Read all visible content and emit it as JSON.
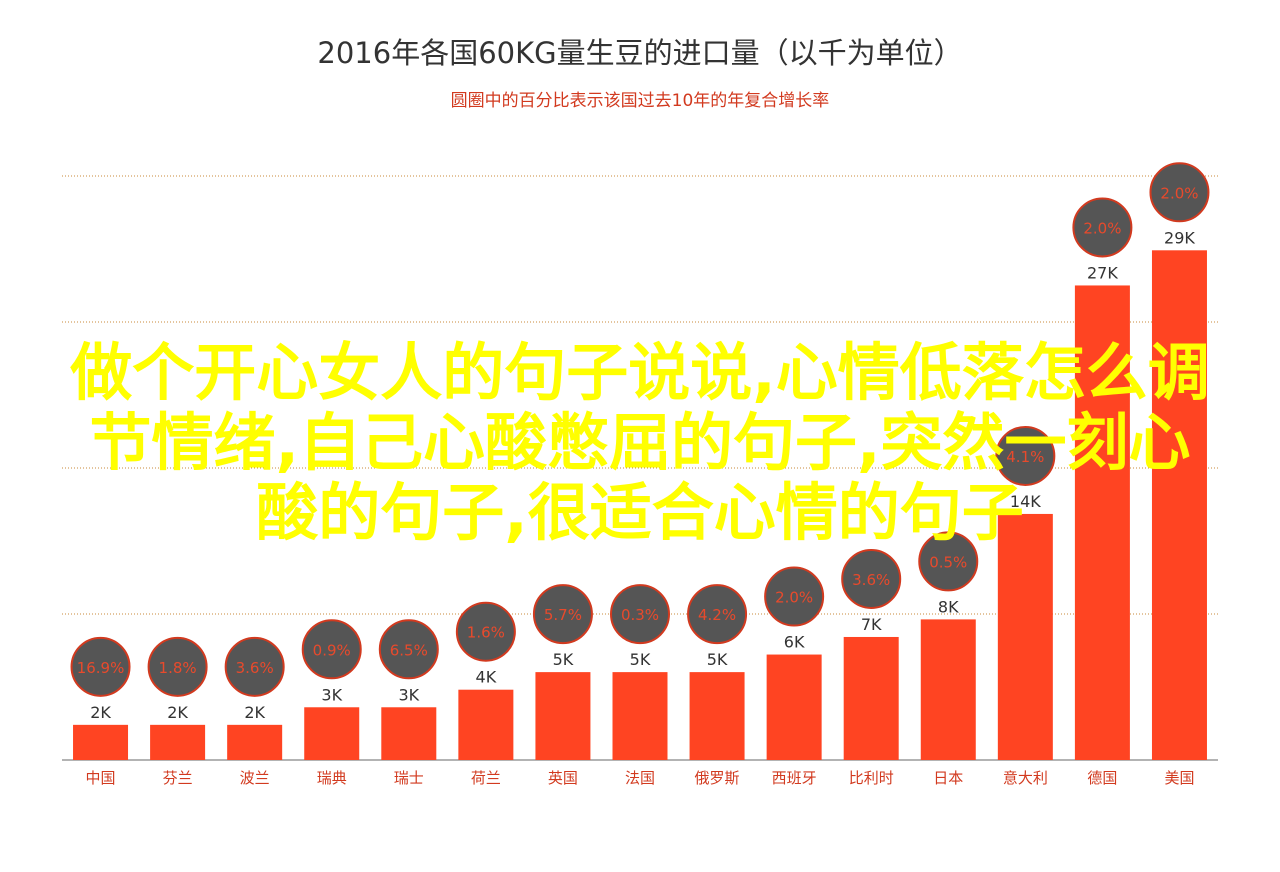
{
  "chart_data": {
    "type": "bar",
    "title": "2016年各国60KG量生豆的进口量（以千为单位）",
    "subtitle": "圆圈中的百分比表示该国过去10年的年复合增长率",
    "categories": [
      "中国",
      "芬兰",
      "波兰",
      "瑞典",
      "瑞士",
      "荷兰",
      "英国",
      "法国",
      "俄罗斯",
      "西班牙",
      "比利时",
      "日本",
      "意大利",
      "德国",
      "美国"
    ],
    "values": [
      2,
      2,
      2,
      3,
      3,
      4,
      5,
      5,
      5,
      6,
      7,
      8,
      14,
      27,
      29
    ],
    "value_labels": [
      "2K",
      "2K",
      "2K",
      "3K",
      "3K",
      "4K",
      "5K",
      "5K",
      "5K",
      "6K",
      "7K",
      "8K",
      "14K",
      "27K",
      "29K"
    ],
    "growth_rates": [
      "16.9%",
      "1.8%",
      "3.6%",
      "0.9%",
      "6.5%",
      "1.6%",
      "5.7%",
      "0.3%",
      "4.2%",
      "2.0%",
      "3.6%",
      "0.5%",
      "4.1%",
      "2.0%",
      "2.0%"
    ],
    "ylim": [
      0,
      33
    ],
    "grid": true,
    "colors": {
      "bar": "#ff4422",
      "circle": "#555555",
      "circle_border": "#d23a1f",
      "circle_text": "#e84a2c",
      "grid": "#c9893a",
      "axis_label": "#d23a1f"
    }
  },
  "overlay": {
    "lines": [
      "做个开心女人的句子说说,心情低落怎么调",
      "节情绪,自己心酸憋屈的句子,突然一刻心",
      "酸的句子,很适合心情的句子"
    ],
    "color": "#ffff00"
  }
}
